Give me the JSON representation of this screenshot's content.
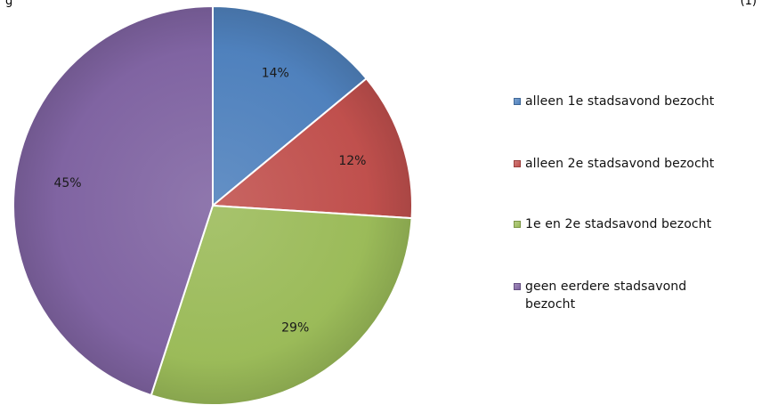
{
  "header": {
    "left_text": "g",
    "right_text": "(1)"
  },
  "chart_data": {
    "type": "pie",
    "categories": [
      "alleen 1e stadsavond bezocht",
      "alleen 2e stadsavond bezocht",
      "1e en 2e stadsavond bezocht",
      "geen eerdere stadsavond bezocht"
    ],
    "values": [
      14,
      12,
      29,
      45
    ],
    "value_labels": [
      "14%",
      "12%",
      "29%",
      "45%"
    ],
    "colors": [
      "#4f81bd",
      "#c0504d",
      "#9bbb59",
      "#8064a2"
    ],
    "start_angle_deg": 0,
    "direction": "clockwise",
    "legend_position": "right",
    "title": ""
  }
}
